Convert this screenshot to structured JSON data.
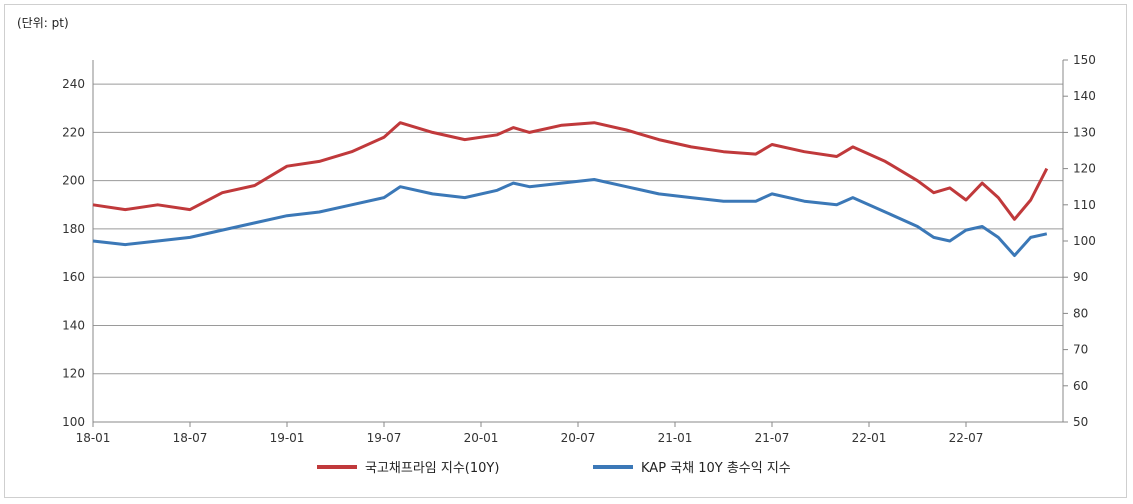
{
  "chart_data": {
    "type": "line",
    "unit_label": "(단위: pt)",
    "x_ticks": [
      "18-01",
      "18-07",
      "19-01",
      "19-07",
      "20-01",
      "20-07",
      "21-01",
      "21-07",
      "22-01",
      "22-07"
    ],
    "y_left": {
      "ylim": [
        100,
        250
      ],
      "ticks": [
        100,
        120,
        140,
        160,
        180,
        200,
        220,
        240
      ]
    },
    "y_right": {
      "ylim": [
        50,
        150
      ],
      "ticks": [
        50,
        60,
        70,
        80,
        90,
        100,
        110,
        120,
        130,
        140,
        150
      ]
    },
    "grid": true,
    "legend_position": "bottom",
    "series": [
      {
        "name": "국고채프라임 지수(10Y)",
        "axis": "left",
        "color": "#c0393b",
        "x": [
          "18-01",
          "18-03",
          "18-05",
          "18-07",
          "18-09",
          "18-11",
          "19-01",
          "19-03",
          "19-05",
          "19-07",
          "19-08",
          "19-10",
          "19-12",
          "20-02",
          "20-03",
          "20-04",
          "20-06",
          "20-08",
          "20-10",
          "20-12",
          "21-02",
          "21-04",
          "21-06",
          "21-07",
          "21-09",
          "21-11",
          "21-12",
          "22-02",
          "22-04",
          "22-05",
          "22-06",
          "22-07",
          "22-08",
          "22-09",
          "22-10",
          "22-11",
          "22-12"
        ],
        "values": [
          190,
          188,
          190,
          188,
          195,
          198,
          206,
          208,
          212,
          218,
          224,
          220,
          217,
          219,
          222,
          220,
          223,
          224,
          221,
          217,
          214,
          212,
          211,
          215,
          212,
          210,
          214,
          208,
          200,
          195,
          197,
          192,
          199,
          193,
          184,
          192,
          205
        ]
      },
      {
        "name": "KAP 국채 10Y 총수익 지수",
        "axis": "right",
        "color": "#3b78b7",
        "x": [
          "18-01",
          "18-03",
          "18-05",
          "18-07",
          "18-09",
          "18-11",
          "19-01",
          "19-03",
          "19-05",
          "19-07",
          "19-08",
          "19-10",
          "19-12",
          "20-02",
          "20-03",
          "20-04",
          "20-06",
          "20-08",
          "20-10",
          "20-12",
          "21-02",
          "21-04",
          "21-06",
          "21-07",
          "21-09",
          "21-11",
          "21-12",
          "22-02",
          "22-04",
          "22-05",
          "22-06",
          "22-07",
          "22-08",
          "22-09",
          "22-10",
          "22-11",
          "22-12"
        ],
        "values": [
          100,
          99,
          100,
          101,
          103,
          105,
          107,
          108,
          110,
          112,
          115,
          113,
          112,
          114,
          116,
          115,
          116,
          117,
          115,
          113,
          112,
          111,
          111,
          113,
          111,
          110,
          112,
          108,
          104,
          101,
          100,
          103,
          104,
          101,
          96,
          101,
          102
        ]
      }
    ]
  }
}
